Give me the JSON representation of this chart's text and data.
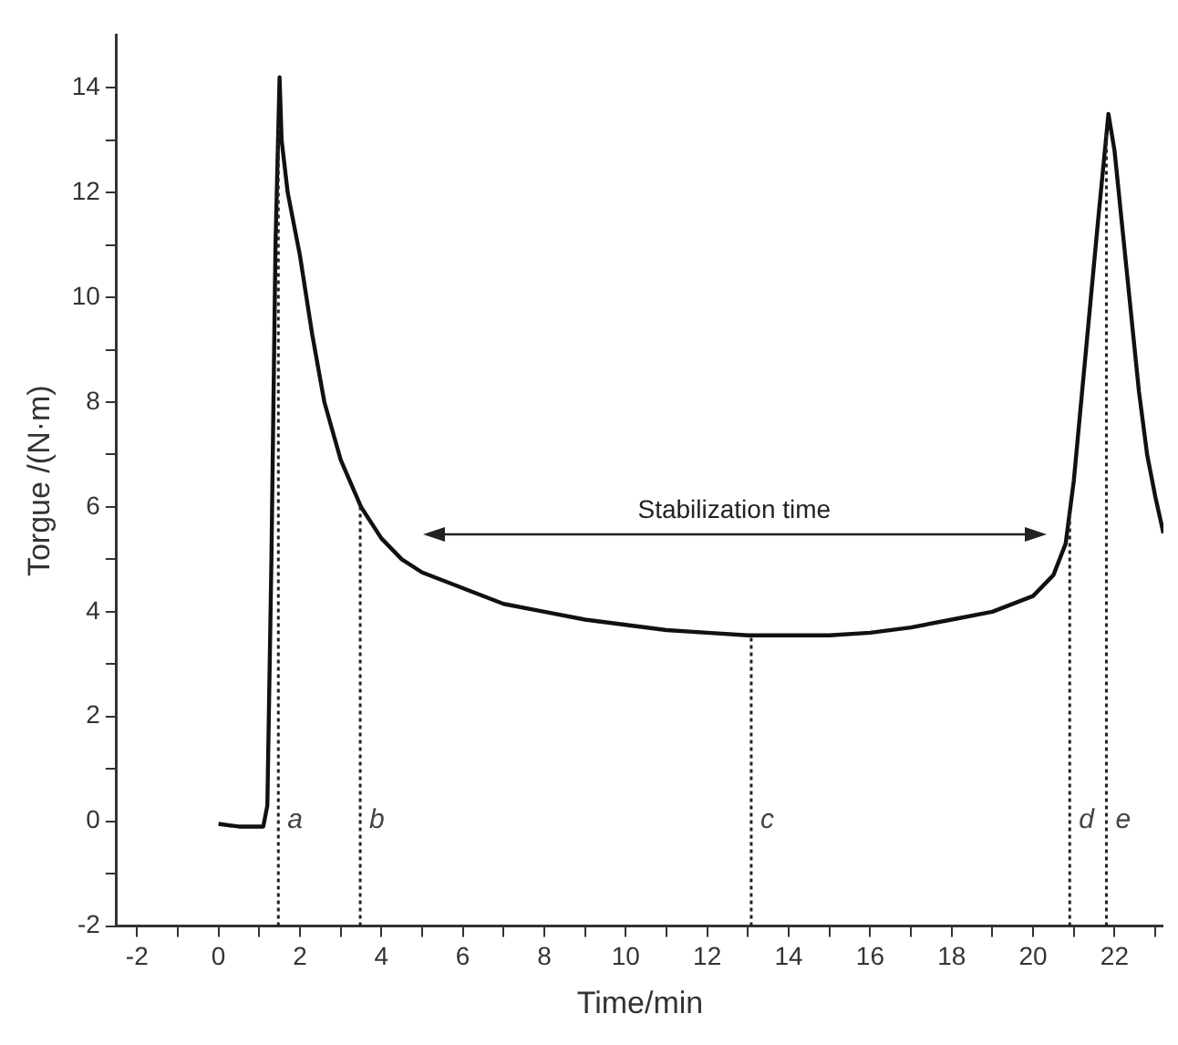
{
  "chart_data": {
    "type": "line",
    "xlabel": "Time/min",
    "ylabel": "Torgue /(N·m)",
    "series": [
      {
        "color": "#111111",
        "x": [
          0,
          0.5,
          1.1,
          1.2,
          1.3,
          1.4,
          1.5,
          1.55,
          1.7,
          2.0,
          2.3,
          2.6,
          3.0,
          3.5,
          4.0,
          4.5,
          5,
          6,
          7,
          8,
          9,
          10,
          11,
          12,
          13,
          14,
          15,
          16,
          17,
          18,
          19,
          20,
          20.5,
          20.8,
          21,
          21.3,
          21.6,
          21.85,
          22.0,
          22.3,
          22.6,
          22.8,
          23.0,
          23.2
        ],
        "values": [
          -0.05,
          -0.1,
          -0.1,
          0.3,
          5,
          11,
          14.2,
          13,
          12,
          10.8,
          9.3,
          8.0,
          6.9,
          6.0,
          5.4,
          5.0,
          4.75,
          4.45,
          4.15,
          4.0,
          3.85,
          3.75,
          3.65,
          3.6,
          3.55,
          3.55,
          3.55,
          3.6,
          3.7,
          3.85,
          4.0,
          4.3,
          4.7,
          5.3,
          6.5,
          9,
          11.5,
          13.5,
          12.8,
          10.5,
          8.2,
          7,
          6.2,
          5.5
        ]
      }
    ],
    "xlim": [
      -2.5,
      23.2
    ],
    "ylim": [
      -2,
      15
    ],
    "xticks": [
      -2,
      {
        "value": -1,
        "label": null
      },
      0,
      {
        "value": 1,
        "label": null
      },
      2,
      {
        "value": 3,
        "label": null
      },
      4,
      {
        "value": 5,
        "label": null
      },
      6,
      {
        "value": 7,
        "label": null
      },
      8,
      {
        "value": 9,
        "label": null
      },
      10,
      {
        "value": 11,
        "label": null
      },
      12,
      {
        "value": 13,
        "label": null
      },
      14,
      {
        "value": 15,
        "label": null
      },
      16,
      {
        "value": 17,
        "label": null
      },
      18,
      {
        "value": 19,
        "label": null
      },
      20,
      {
        "value": 21,
        "label": null
      },
      22,
      {
        "value": 23,
        "label": null
      }
    ],
    "yticks": [
      -2,
      {
        "value": -1,
        "label": null
      },
      0,
      {
        "value": 1,
        "label": null
      },
      2,
      {
        "value": 3,
        "label": null
      },
      4,
      {
        "value": 5,
        "label": null
      },
      6,
      {
        "value": 7,
        "label": null
      },
      8,
      {
        "value": 9,
        "label": null
      },
      10,
      {
        "value": 11,
        "label": null
      },
      12,
      {
        "value": 13,
        "label": null
      },
      14
    ],
    "ref_lines": [
      {
        "axis": "x",
        "value": 1.47,
        "label": "a",
        "line_style": "dotted"
      },
      {
        "axis": "x",
        "value": 3.48,
        "label": "b",
        "line_style": "dotted"
      },
      {
        "axis": "x",
        "value": 13.08,
        "label": "c",
        "line_style": "dotted"
      },
      {
        "axis": "x",
        "value": 20.9,
        "label": "d",
        "line_style": "dotted"
      },
      {
        "axis": "x",
        "value": 21.8,
        "label": "e",
        "line_style": "dotted"
      }
    ],
    "annotations": [
      "Stabilization time"
    ],
    "grid": false,
    "legend": false,
    "marker": "none",
    "line_style": "solid"
  }
}
